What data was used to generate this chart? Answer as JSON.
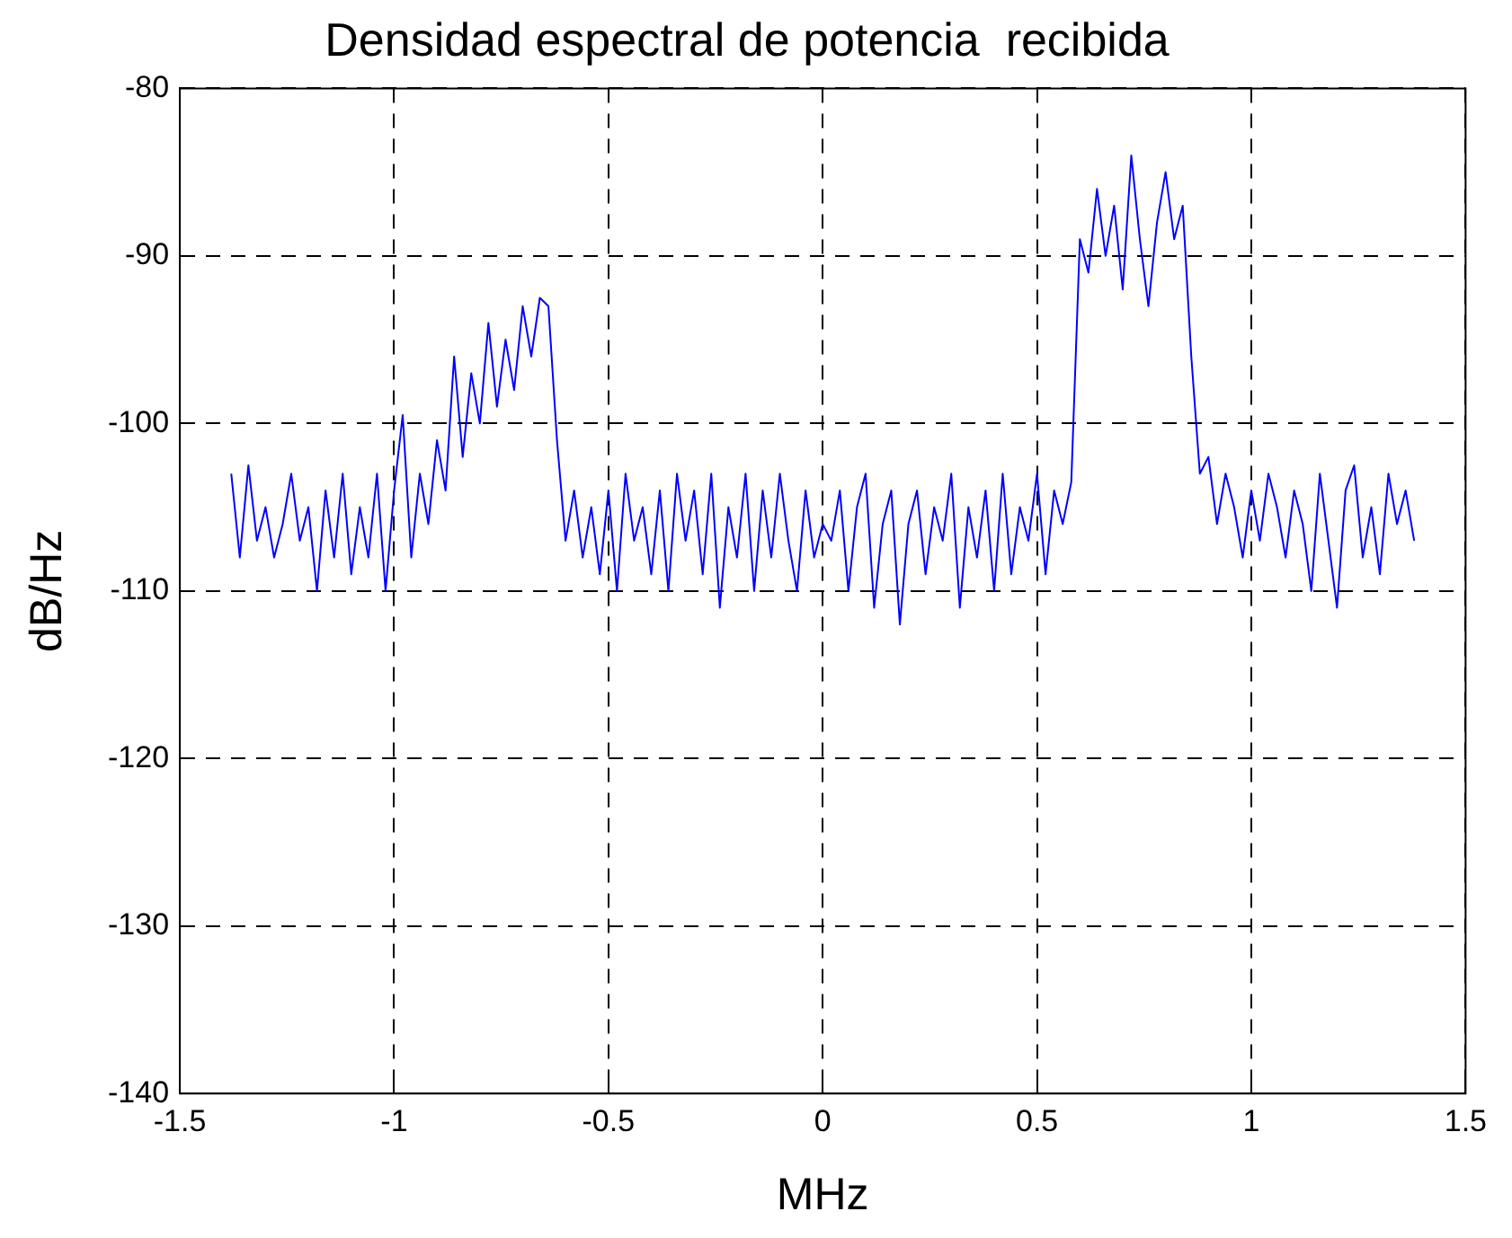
{
  "chart_data": {
    "type": "line",
    "title": "Densidad espectral de potencia  recibida",
    "xlabel": "MHz",
    "ylabel": "dB/Hz",
    "x": [
      -1.38,
      -1.36,
      -1.34,
      -1.32,
      -1.3,
      -1.28,
      -1.26,
      -1.24,
      -1.22,
      -1.2,
      -1.18,
      -1.16,
      -1.14,
      -1.12,
      -1.1,
      -1.08,
      -1.06,
      -1.04,
      -1.02,
      -1,
      -0.98,
      -0.96,
      -0.94,
      -0.92,
      -0.9,
      -0.88,
      -0.86,
      -0.84,
      -0.82,
      -0.8,
      -0.78,
      -0.76,
      -0.74,
      -0.72,
      -0.7,
      -0.68,
      -0.66,
      -0.64,
      -0.62,
      -0.6,
      -0.58,
      -0.56,
      -0.54,
      -0.52,
      -0.5,
      -0.48,
      -0.46,
      -0.44,
      -0.42,
      -0.4,
      -0.38,
      -0.36,
      -0.34,
      -0.32,
      -0.3,
      -0.28,
      -0.26,
      -0.24,
      -0.22,
      -0.2,
      -0.18,
      -0.16,
      -0.14,
      -0.12,
      -0.1,
      -0.08,
      -0.06,
      -0.04,
      -0.02,
      0,
      0.02,
      0.04,
      0.06,
      0.08,
      0.1,
      0.12,
      0.14,
      0.16,
      0.18,
      0.2,
      0.22,
      0.24,
      0.26,
      0.28,
      0.3,
      0.32,
      0.34,
      0.36,
      0.38,
      0.4,
      0.42,
      0.44,
      0.46,
      0.48,
      0.5,
      0.52,
      0.54,
      0.56,
      0.58,
      0.6,
      0.62,
      0.64,
      0.66,
      0.68,
      0.7,
      0.72,
      0.74,
      0.76,
      0.78,
      0.8,
      0.82,
      0.84,
      0.86,
      0.88,
      0.9,
      0.92,
      0.94,
      0.96,
      0.98,
      1,
      1.02,
      1.04,
      1.06,
      1.08,
      1.1,
      1.12,
      1.14,
      1.16,
      1.18,
      1.2,
      1.22,
      1.24,
      1.26,
      1.28,
      1.3,
      1.32,
      1.34,
      1.36,
      1.38
    ],
    "series": [
      {
        "color": "#0000ff",
        "values": [
          -103,
          -108,
          -102.5,
          -107,
          -105,
          -108,
          -106,
          -103,
          -107,
          -105,
          -110,
          -104,
          -108,
          -103,
          -109,
          -105,
          -108,
          -103,
          -110,
          -104,
          -99.5,
          -108,
          -103,
          -106,
          -101,
          -104,
          -96,
          -102,
          -97,
          -100,
          -94,
          -99,
          -95,
          -98,
          -93,
          -96,
          -92.5,
          -93,
          -101,
          -107,
          -104,
          -108,
          -105,
          -109,
          -104,
          -110,
          -103,
          -107,
          -105,
          -109,
          -104,
          -110,
          -103,
          -107,
          -104,
          -109,
          -103,
          -111,
          -105,
          -108,
          -103,
          -110,
          -104,
          -108,
          -103,
          -107,
          -110,
          -104,
          -108,
          -106,
          -107,
          -104,
          -110,
          -105,
          -103,
          -111,
          -106,
          -104,
          -112,
          -106,
          -104,
          -109,
          -105,
          -107,
          -103,
          -111,
          -105,
          -108,
          -104,
          -110,
          -103,
          -109,
          -105,
          -107,
          -103,
          -109,
          -104,
          -106,
          -103.5,
          -89,
          -91,
          -86,
          -90,
          -87,
          -92,
          -84,
          -89,
          -93,
          -88,
          -85,
          -89,
          -87,
          -96,
          -103,
          -102,
          -106,
          -103,
          -105,
          -108,
          -104,
          -107,
          -103,
          -105,
          -108,
          -104,
          -106,
          -110,
          -103,
          -107,
          -111,
          -104,
          -102.5,
          -108,
          -105,
          -109,
          -103,
          -106,
          -104,
          -107
        ]
      }
    ],
    "xlim": [
      -1.5,
      1.5
    ],
    "xticks": [
      -1.5,
      -1,
      -0.5,
      0,
      0.5,
      1,
      1.5
    ],
    "ylim": [
      -140,
      -80
    ],
    "yticks": [
      -140,
      -130,
      -120,
      -110,
      -100,
      -90,
      -80
    ],
    "grid": true,
    "legend": false,
    "marker": "none",
    "line_style": "solid"
  }
}
